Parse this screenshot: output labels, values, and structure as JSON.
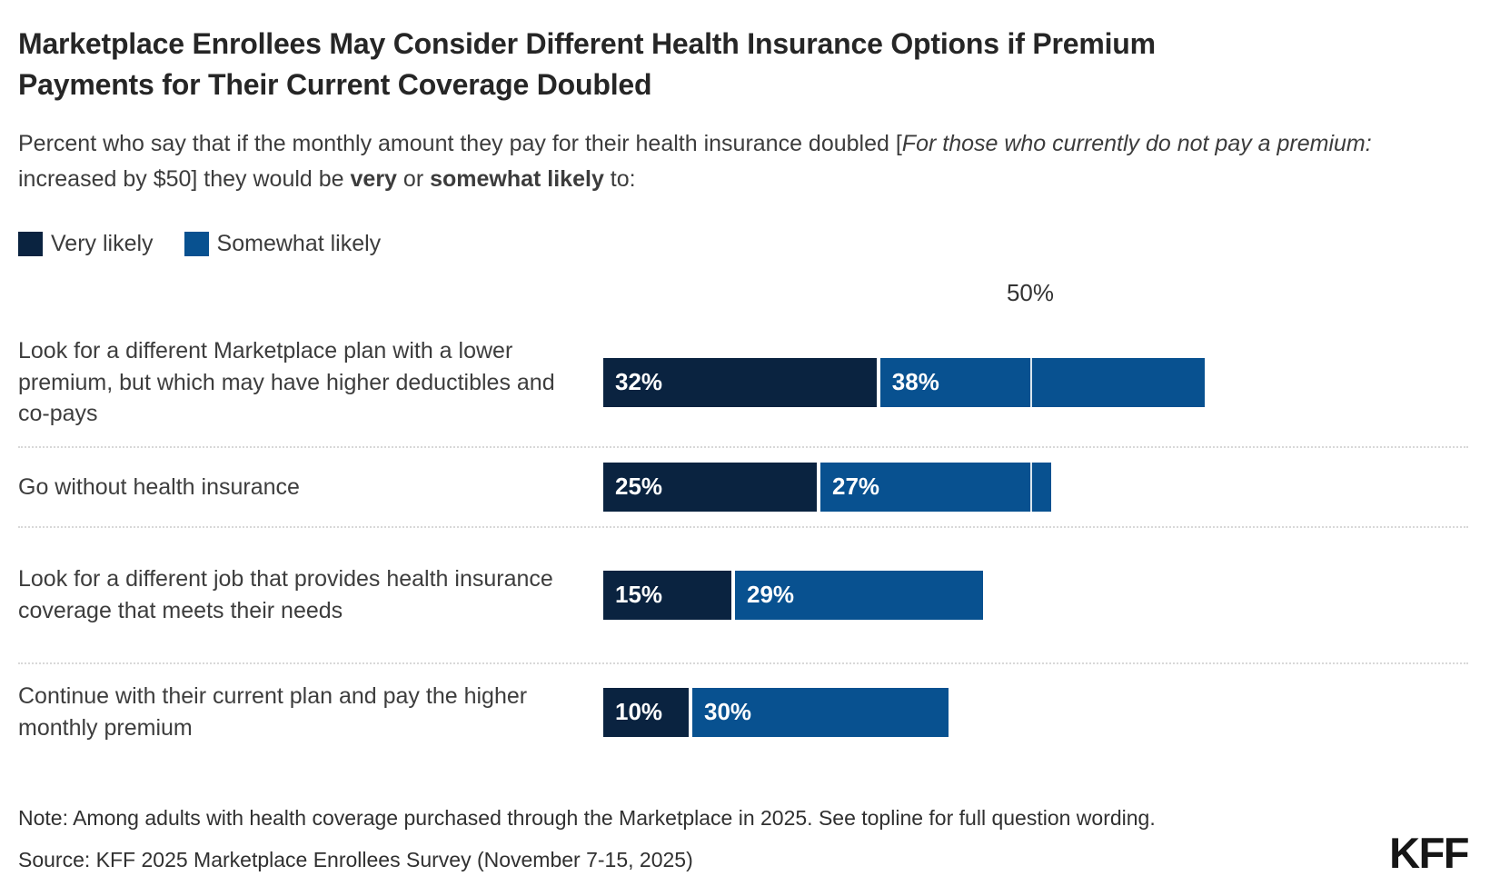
{
  "title": "Marketplace Enrollees May Consider Different Health Insurance Options if Premium Payments for Their Current Coverage Doubled",
  "subtitle": {
    "p1": "Percent who say that if the monthly amount they pay for their health insurance doubled [",
    "italic": "For those who currently do not pay a premium:",
    "p2": " increased by $50] they would be ",
    "bold1": "very",
    "p3": " or ",
    "bold2": "somewhat likely",
    "p4": " to:"
  },
  "chart_data": {
    "type": "bar",
    "orientation": "horizontal",
    "stacked": true,
    "value_suffix": "%",
    "categories": [
      "Look for a different Marketplace plan with a lower premium, but which may have higher deductibles and co-pays",
      "Go without health insurance",
      "Look for a different job that provides health insurance coverage that meets their needs",
      "Continue with their current plan and pay the higher monthly premium"
    ],
    "series": [
      {
        "name": "Very likely",
        "color": "#0a2340",
        "values": [
          32,
          25,
          15,
          10
        ]
      },
      {
        "name": "Somewhat likely",
        "color": "#085190",
        "values": [
          38,
          27,
          29,
          30
        ]
      }
    ],
    "totals": [
      70,
      52,
      44,
      40
    ],
    "axis": {
      "tick_value": 50,
      "tick_label": "50%",
      "xlim": [
        0,
        100
      ]
    },
    "legend_position": "top",
    "grid": "single-50-tick"
  },
  "legend": {
    "items": [
      {
        "label": "Very likely"
      },
      {
        "label": "Somewhat likely"
      }
    ]
  },
  "note": "Note: Among adults with health coverage purchased through the Marketplace in 2025. See topline for full question wording.",
  "source": "Source: KFF 2025 Marketplace Enrollees Survey (November 7-15, 2025)",
  "logo": "KFF"
}
